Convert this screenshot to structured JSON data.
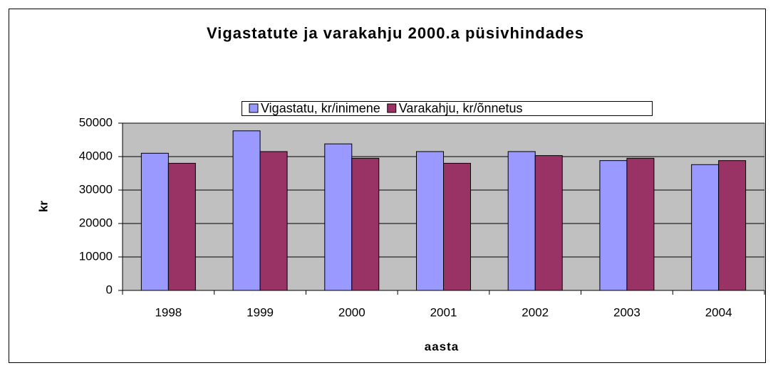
{
  "chart_data": {
    "type": "bar",
    "title": "Vigastatute ja varakahju 2000.a püsivhindades",
    "x_label": "aasta",
    "y_label": "kr",
    "categories": [
      "1998",
      "1999",
      "2000",
      "2001",
      "2002",
      "2003",
      "2004"
    ],
    "series": [
      {
        "name": "Vigastatu, kr/inimene",
        "color": "#9999ff",
        "values": [
          41000,
          47700,
          43800,
          41500,
          41500,
          38800,
          37600
        ]
      },
      {
        "name": "Varakahju, kr/õnnetus",
        "color": "#993366",
        "values": [
          38000,
          41500,
          39500,
          38000,
          40300,
          39500,
          38800
        ]
      }
    ],
    "ylim": [
      0,
      50000
    ],
    "yticks": [
      0,
      10000,
      20000,
      30000,
      40000,
      50000
    ],
    "grid": true,
    "legend": "top"
  }
}
